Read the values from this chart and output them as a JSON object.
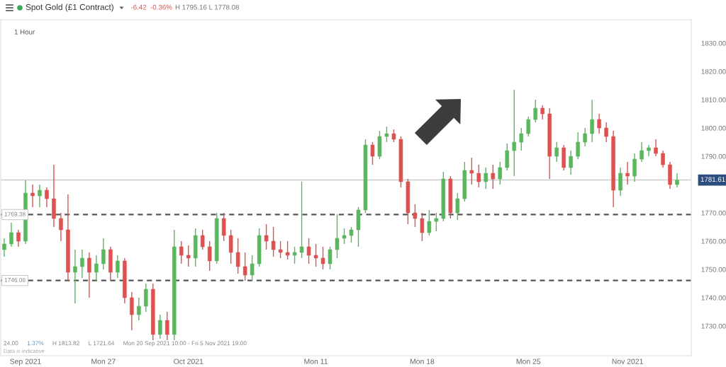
{
  "chart_data": {
    "type": "candlestick",
    "title": "Spot Gold (£1 Contract)",
    "subtitle": "-6.42  -0.36%",
    "annotations": [
      "H 1795.16 L 1778.08",
      "1 Hour",
      "24.00",
      "1.37%",
      "H 1813.82",
      "L 1721.64",
      "Mon 20 Sep 2021 10:00 - Fri 5 Nov 2021 19:00",
      "Data is indicative"
    ],
    "categories": [
      null,
      null,
      null,
      "Sep 2021",
      null,
      null,
      null,
      null,
      null,
      null,
      null,
      null,
      null,
      null,
      "Mon 27",
      null,
      null,
      null,
      null,
      null,
      null,
      null,
      null,
      null,
      null,
      null,
      "Oct 2021",
      null,
      null,
      null,
      null,
      null,
      null,
      null,
      null,
      null,
      null,
      null,
      null,
      null,
      null,
      null,
      null,
      null,
      "Mon 11",
      null,
      null,
      null,
      null,
      null,
      null,
      null,
      null,
      null,
      null,
      null,
      null,
      null,
      null,
      "Mon 18",
      null,
      null,
      null,
      null,
      null,
      null,
      null,
      null,
      null,
      null,
      null,
      null,
      null,
      null,
      "Mon 25",
      null,
      null,
      null,
      null,
      null,
      null,
      null,
      null,
      null,
      null,
      null,
      null,
      null,
      "Nov 2021",
      null,
      null,
      null,
      null,
      null,
      null,
      null
    ],
    "ohlc": [
      [
        1757,
        1761,
        1754.5,
        1759
      ],
      [
        1759,
        1766.5,
        1758,
        1763
      ],
      [
        1763,
        1764,
        1758,
        1760
      ],
      [
        1760,
        1781.5,
        1759,
        1777
      ],
      [
        1777,
        1780,
        1772,
        1776
      ],
      [
        1776,
        1780,
        1772,
        1778
      ],
      [
        1778,
        1779,
        1772,
        1775
      ],
      [
        1775,
        1787,
        1765,
        1768
      ],
      [
        1768,
        1770,
        1760,
        1764
      ],
      [
        1764,
        1776.5,
        1746,
        1749
      ],
      [
        1749,
        1757,
        1738,
        1751
      ],
      [
        1751,
        1757,
        1747,
        1754
      ],
      [
        1754,
        1756,
        1740,
        1749
      ],
      [
        1749,
        1755,
        1746,
        1752
      ],
      [
        1752,
        1761,
        1750,
        1757
      ],
      [
        1757,
        1758,
        1746,
        1749
      ],
      [
        1749,
        1755,
        1747,
        1753
      ],
      [
        1753,
        1754,
        1738,
        1740
      ],
      [
        1740,
        1742,
        1728.5,
        1734
      ],
      [
        1734,
        1740,
        1732,
        1737
      ],
      [
        1737,
        1745,
        1735,
        1743
      ],
      [
        1743,
        1745,
        1725,
        1727
      ],
      [
        1727,
        1734,
        1725.5,
        1732
      ],
      [
        1732,
        1735,
        1725,
        1727
      ],
      [
        1727,
        1764,
        1725,
        1758
      ],
      [
        1758,
        1760,
        1752,
        1755
      ],
      [
        1755,
        1758.5,
        1751,
        1754
      ],
      [
        1754,
        1764.5,
        1751,
        1762
      ],
      [
        1762,
        1764,
        1757,
        1758
      ],
      [
        1758,
        1760,
        1749.5,
        1753
      ],
      [
        1753,
        1770,
        1752,
        1768
      ],
      [
        1768,
        1770,
        1760,
        1762
      ],
      [
        1762,
        1764,
        1752,
        1756
      ],
      [
        1756,
        1761,
        1748.5,
        1751
      ],
      [
        1751,
        1756,
        1746,
        1748
      ],
      [
        1748,
        1755,
        1746,
        1752
      ],
      [
        1752,
        1764.5,
        1751,
        1762
      ],
      [
        1762,
        1766,
        1757,
        1760
      ],
      [
        1760,
        1765,
        1754.5,
        1757
      ],
      [
        1757,
        1760,
        1754,
        1756
      ],
      [
        1756,
        1760,
        1753.5,
        1755
      ],
      [
        1755,
        1758,
        1752,
        1756
      ],
      [
        1756,
        1781,
        1754,
        1758
      ],
      [
        1758,
        1761,
        1752,
        1755
      ],
      [
        1755,
        1759,
        1751,
        1754
      ],
      [
        1754,
        1758,
        1750,
        1752
      ],
      [
        1752,
        1758,
        1750,
        1757
      ],
      [
        1757,
        1769.5,
        1754,
        1761
      ],
      [
        1761,
        1764.5,
        1759,
        1762
      ],
      [
        1762,
        1765,
        1759.5,
        1764
      ],
      [
        1764,
        1772,
        1758,
        1771
      ],
      [
        1771,
        1796,
        1770,
        1794
      ],
      [
        1794,
        1795,
        1787,
        1790
      ],
      [
        1790,
        1799,
        1789,
        1797
      ],
      [
        1797,
        1800.5,
        1795,
        1798
      ],
      [
        1798,
        1799.5,
        1795,
        1796
      ],
      [
        1796,
        1797,
        1779,
        1781
      ],
      [
        1781,
        1782,
        1766,
        1770
      ],
      [
        1770,
        1773,
        1765,
        1768
      ],
      [
        1768,
        1770,
        1760,
        1763
      ],
      [
        1763,
        1771,
        1762,
        1767
      ],
      [
        1767,
        1770,
        1763.5,
        1768
      ],
      [
        1768,
        1784.5,
        1767,
        1782
      ],
      [
        1782,
        1783,
        1768,
        1770
      ],
      [
        1770,
        1777,
        1767.5,
        1775
      ],
      [
        1775,
        1788,
        1774,
        1785
      ],
      [
        1785,
        1789.5,
        1780,
        1784
      ],
      [
        1784,
        1787,
        1779,
        1781
      ],
      [
        1781,
        1786,
        1778.5,
        1784
      ],
      [
        1784,
        1787,
        1778.5,
        1782
      ],
      [
        1782,
        1788,
        1780,
        1786
      ],
      [
        1786,
        1794.5,
        1785,
        1792
      ],
      [
        1792,
        1813.5,
        1783,
        1795
      ],
      [
        1795,
        1800,
        1792,
        1798
      ],
      [
        1798,
        1804,
        1797,
        1803
      ],
      [
        1803,
        1810,
        1802,
        1807
      ],
      [
        1807,
        1808,
        1803,
        1805
      ],
      [
        1805,
        1807,
        1782,
        1790
      ],
      [
        1790,
        1795,
        1788,
        1793
      ],
      [
        1793,
        1794,
        1785,
        1786
      ],
      [
        1786,
        1792,
        1783.5,
        1790
      ],
      [
        1790,
        1798.5,
        1789,
        1795
      ],
      [
        1795,
        1800,
        1793.5,
        1798
      ],
      [
        1798,
        1810,
        1795,
        1803
      ],
      [
        1803,
        1805,
        1798,
        1800
      ],
      [
        1800,
        1802,
        1795,
        1797
      ],
      [
        1797,
        1799,
        1772,
        1778
      ],
      [
        1778,
        1786,
        1776,
        1784
      ],
      [
        1784,
        1788,
        1780,
        1783
      ],
      [
        1783,
        1791,
        1781,
        1789
      ],
      [
        1789,
        1795,
        1788,
        1792
      ],
      [
        1792,
        1794,
        1790,
        1793
      ],
      [
        1793,
        1796,
        1790,
        1791
      ],
      [
        1791,
        1792,
        1786,
        1787
      ],
      [
        1787,
        1788,
        1778.5,
        1780
      ],
      [
        1780,
        1784,
        1779,
        1781.61
      ]
    ],
    "colors": [
      "#58b85c",
      "#58b85c",
      "#e0504f",
      "#58b85c",
      "#e0504f",
      "#58b85c",
      "#e0504f",
      "#e0504f",
      "#e0504f",
      "#e0504f",
      "#58b85c",
      "#58b85c",
      "#e0504f",
      "#58b85c",
      "#58b85c",
      "#e0504f",
      "#58b85c",
      "#e0504f",
      "#e0504f",
      "#58b85c",
      "#58b85c",
      "#e0504f",
      "#58b85c",
      "#e0504f",
      "#58b85c",
      "#e0504f",
      "#e0504f",
      "#58b85c",
      "#e0504f",
      "#e0504f",
      "#58b85c",
      "#e0504f",
      "#e0504f",
      "#e0504f",
      "#e0504f",
      "#58b85c",
      "#58b85c",
      "#e0504f",
      "#e0504f",
      "#e0504f",
      "#e0504f",
      "#58b85c",
      "#58b85c",
      "#e0504f",
      "#e0504f",
      "#e0504f",
      "#58b85c",
      "#58b85c",
      "#58b85c",
      "#58b85c",
      "#58b85c",
      "#58b85c",
      "#e0504f",
      "#58b85c",
      "#58b85c",
      "#e0504f",
      "#e0504f",
      "#e0504f",
      "#e0504f",
      "#e0504f",
      "#58b85c",
      "#58b85c",
      "#58b85c",
      "#e0504f",
      "#58b85c",
      "#58b85c",
      "#e0504f",
      "#e0504f",
      "#58b85c",
      "#e0504f",
      "#58b85c",
      "#58b85c",
      "#58b85c",
      "#58b85c",
      "#58b85c",
      "#58b85c",
      "#e0504f",
      "#e0504f",
      "#58b85c",
      "#e0504f",
      "#58b85c",
      "#58b85c",
      "#58b85c",
      "#58b85c",
      "#e0504f",
      "#e0504f",
      "#e0504f",
      "#58b85c",
      "#e0504f",
      "#58b85c",
      "#58b85c",
      "#58b85c",
      "#e0504f",
      "#e0504f",
      "#e0504f",
      "#58b85c"
    ],
    "ylim": [
      1719.5,
      1838.25
    ],
    "yticks": [
      {
        "value": 1730,
        "label": "1730.00"
      },
      {
        "value": 1740,
        "label": "1740.00"
      },
      {
        "value": 1750,
        "label": "1750.00"
      },
      {
        "value": 1760,
        "label": "1760.00"
      },
      {
        "value": 1770,
        "label": "1770.00"
      },
      {
        "value": 1790,
        "label": "1790.00"
      },
      {
        "value": 1800,
        "label": "1800.00"
      },
      {
        "value": 1810,
        "label": "1810.00"
      },
      {
        "value": 1820,
        "label": "1820.00"
      },
      {
        "value": 1830,
        "label": "1830.00"
      }
    ],
    "ref_lines": [
      {
        "axis": "y",
        "value": 1769.38,
        "label": "1769.38",
        "color": "#555555",
        "line_style": "dashed"
      },
      {
        "axis": "y",
        "value": 1746.08,
        "label": "1746.08",
        "color": "#555555",
        "line_style": "dashed"
      },
      {
        "axis": "y",
        "value": 1781.61,
        "label": "1781.61",
        "color": "#cccccc",
        "line_style": "solid"
      }
    ]
  }
}
